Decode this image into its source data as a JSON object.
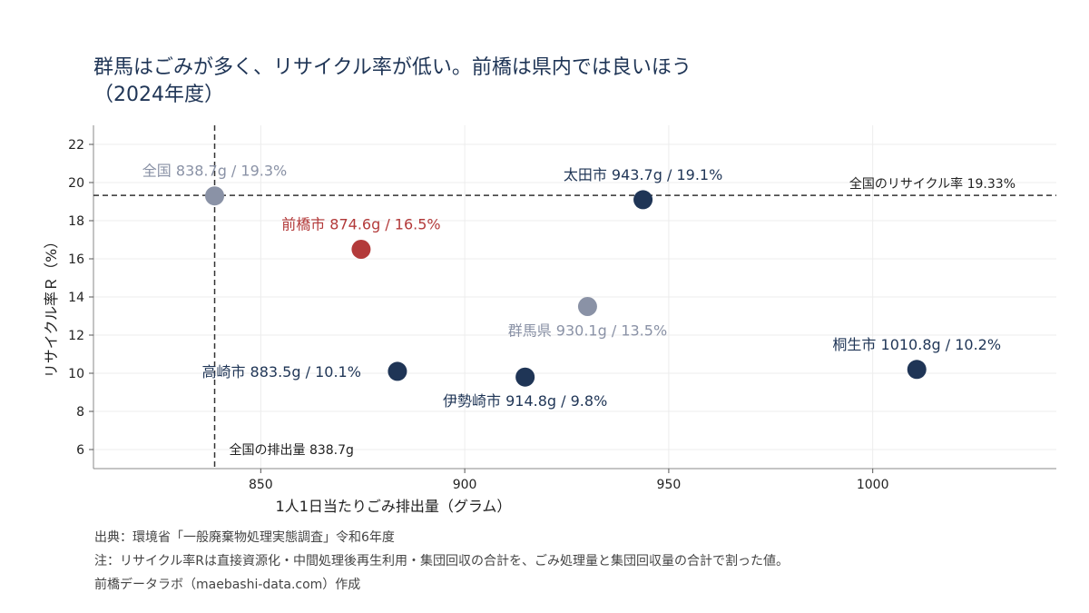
{
  "title": {
    "line1": "群馬はごみが多く、リサイクル率が低い。前橋は県内では良いほう",
    "line2": "（2024年度）"
  },
  "chart_data": {
    "type": "scatter",
    "xlabel": "1人1日当たりごみ排出量（グラム）",
    "ylabel": "リサイクル率Ｒ（%）",
    "xlim": [
      809,
      1045
    ],
    "ylim": [
      5,
      23
    ],
    "xticks": [
      850,
      900,
      950,
      1000
    ],
    "yticks": [
      6,
      8,
      10,
      12,
      14,
      16,
      18,
      20,
      22
    ],
    "grid": true,
    "points": [
      {
        "name": "全国",
        "x": 838.7,
        "y": 19.3,
        "label": "全国  838.7g / 19.3%",
        "color": "#8a92a6",
        "label_pos": "above"
      },
      {
        "name": "前橋市",
        "x": 874.6,
        "y": 16.5,
        "label": "前橋市  874.6g / 16.5%",
        "color": "#b33a3a",
        "label_pos": "above"
      },
      {
        "name": "高崎市",
        "x": 883.5,
        "y": 10.1,
        "label": "高崎市  883.5g / 10.1%",
        "color": "#1f3556",
        "label_pos": "left"
      },
      {
        "name": "伊勢崎市",
        "x": 914.8,
        "y": 9.8,
        "label": "伊勢崎市  914.8g / 9.8%",
        "color": "#1f3556",
        "label_pos": "below"
      },
      {
        "name": "群馬県",
        "x": 930.1,
        "y": 13.5,
        "label": "群馬県  930.1g / 13.5%",
        "color": "#8a92a6",
        "label_pos": "below"
      },
      {
        "name": "太田市",
        "x": 943.7,
        "y": 19.1,
        "label": "太田市  943.7g / 19.1%",
        "color": "#1f3556",
        "label_pos": "above"
      },
      {
        "name": "桐生市",
        "x": 1010.8,
        "y": 10.2,
        "label": "桐生市  1010.8g / 10.2%",
        "color": "#1f3556",
        "label_pos": "above"
      }
    ],
    "reference_lines": [
      {
        "orientation": "horizontal",
        "value": 19.33,
        "label": "全国のリサイクル率 19.33%"
      },
      {
        "orientation": "vertical",
        "value": 838.7,
        "label": "全国の排出量 838.7g"
      }
    ]
  },
  "notes": {
    "source": "出典：環境省「一般廃棄物処理実態調査」令和6年度",
    "note": "注：リサイクル率Rは直接資源化・中間処理後再生利用・集団回収の合計を、ごみ処理量と集団回収量の合計で割った値。",
    "credit": "前橋データラボ（maebashi-data.com）作成"
  }
}
